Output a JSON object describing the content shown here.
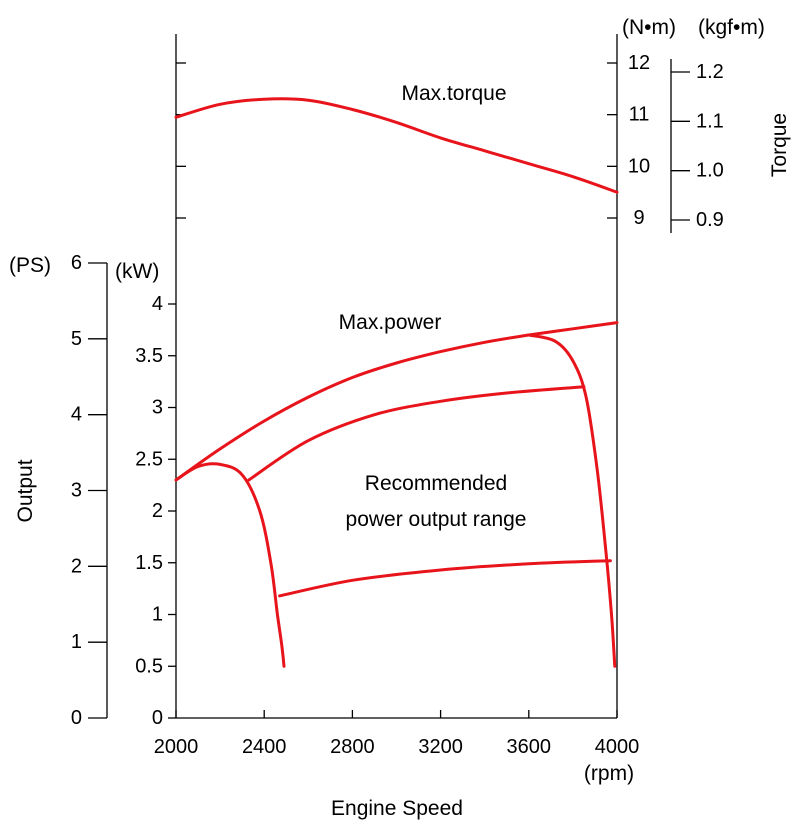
{
  "chart_data": {
    "type": "line",
    "xlabel": "Engine Speed",
    "xunit": "(rpm)",
    "x_ticks": [
      "2000",
      "2400",
      "2800",
      "3200",
      "3600",
      "4000"
    ],
    "xlim": [
      2000,
      4000
    ],
    "output_axis": {
      "label": "Output",
      "ps_unit": "(PS)",
      "ps_ticks": [
        "0",
        "1",
        "2",
        "3",
        "4",
        "5",
        "6"
      ],
      "ps_range": [
        0,
        6
      ],
      "kw_unit": "(kW)",
      "kw_ticks": [
        "0",
        "0.5",
        "1",
        "1.5",
        "2",
        "2.5",
        "3",
        "3.5",
        "4"
      ],
      "kw_range": [
        0,
        4.4
      ]
    },
    "torque_axis": {
      "label": "Torque",
      "nm_unit": "(N•m)",
      "nm_ticks": [
        "9",
        "10",
        "11",
        "12"
      ],
      "nm_range": [
        9,
        12
      ],
      "kgfm_unit": "(kgf•m)",
      "kgfm_ticks": [
        "0.9",
        "1.0",
        "1.1",
        "1.2"
      ],
      "kgfm_range": [
        0.9,
        1.2
      ]
    },
    "annotations": {
      "max_torque": "Max.torque",
      "max_power": "Max.power",
      "range_line1": "Recommended",
      "range_line2": "power output range"
    },
    "series": [
      {
        "name": "Max.torque",
        "axis": "torque_nm",
        "points": [
          [
            2000,
            10.95
          ],
          [
            2200,
            11.2
          ],
          [
            2400,
            11.3
          ],
          [
            2600,
            11.28
          ],
          [
            2800,
            11.1
          ],
          [
            3000,
            10.85
          ],
          [
            3200,
            10.55
          ],
          [
            3400,
            10.3
          ],
          [
            3600,
            10.05
          ],
          [
            3800,
            9.8
          ],
          [
            4000,
            9.5
          ]
        ]
      },
      {
        "name": "Max.power",
        "axis": "power_kw",
        "points": [
          [
            2000,
            2.3
          ],
          [
            2200,
            2.6
          ],
          [
            2400,
            2.87
          ],
          [
            2600,
            3.1
          ],
          [
            2800,
            3.29
          ],
          [
            3000,
            3.43
          ],
          [
            3200,
            3.54
          ],
          [
            3400,
            3.63
          ],
          [
            3600,
            3.7
          ],
          [
            3800,
            3.76
          ],
          [
            4000,
            3.82
          ]
        ]
      },
      {
        "name": "Range upper boundary",
        "axis": "power_kw",
        "points": [
          [
            2330,
            2.3
          ],
          [
            2600,
            2.68
          ],
          [
            2900,
            2.93
          ],
          [
            3200,
            3.06
          ],
          [
            3500,
            3.14
          ],
          [
            3850,
            3.2
          ]
        ]
      },
      {
        "name": "Range lower boundary",
        "axis": "power_kw",
        "points": [
          [
            2470,
            1.18
          ],
          [
            2800,
            1.33
          ],
          [
            3200,
            1.43
          ],
          [
            3600,
            1.49
          ],
          [
            3970,
            1.52
          ]
        ]
      },
      {
        "name": "Low-speed limit",
        "axis": "power_kw",
        "points": [
          [
            2000,
            2.3
          ],
          [
            2100,
            2.43
          ],
          [
            2200,
            2.45
          ],
          [
            2300,
            2.35
          ],
          [
            2380,
            2.0
          ],
          [
            2430,
            1.5
          ],
          [
            2460,
            1.0
          ],
          [
            2480,
            0.7
          ],
          [
            2490,
            0.5
          ]
        ]
      },
      {
        "name": "High-speed limit",
        "axis": "power_kw",
        "points": [
          [
            3600,
            3.7
          ],
          [
            3720,
            3.64
          ],
          [
            3800,
            3.45
          ],
          [
            3860,
            3.1
          ],
          [
            3910,
            2.4
          ],
          [
            3950,
            1.6
          ],
          [
            3975,
            1.0
          ],
          [
            3990,
            0.5
          ]
        ]
      }
    ]
  }
}
